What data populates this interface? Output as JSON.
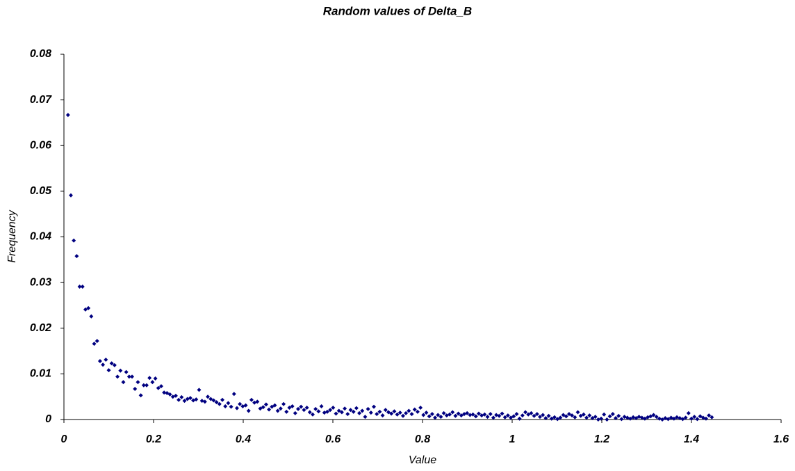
{
  "chart_data": {
    "type": "scatter",
    "title": "Random values of Delta_B",
    "x_label": "Value",
    "y_label": "Frequency",
    "color": "#000080",
    "marker": "diamond",
    "grid": false,
    "xlim": [
      0,
      1.6
    ],
    "xticks": [
      0,
      0.2,
      0.4,
      0.6,
      0.8,
      1,
      1.2,
      1.4,
      1.6
    ],
    "ylim": [
      0,
      0.08
    ],
    "yticks": [
      0,
      0.01,
      0.02,
      0.03,
      0.04,
      0.05,
      0.06,
      0.07,
      0.08
    ],
    "x": [
      0.009,
      0.0155,
      0.022,
      0.0285,
      0.035,
      0.0415,
      0.048,
      0.0545,
      0.061,
      0.0675,
      0.074,
      0.0805,
      0.087,
      0.0935,
      0.1,
      0.1065,
      0.113,
      0.1195,
      0.126,
      0.1325,
      0.139,
      0.1455,
      0.152,
      0.1585,
      0.165,
      0.1715,
      0.178,
      0.1845,
      0.191,
      0.1975,
      0.204,
      0.2105,
      0.217,
      0.2235,
      0.23,
      0.2365,
      0.243,
      0.2495,
      0.256,
      0.2625,
      0.269,
      0.2755,
      0.282,
      0.2885,
      0.295,
      0.3015,
      0.308,
      0.3145,
      0.321,
      0.3275,
      0.334,
      0.3405,
      0.347,
      0.3535,
      0.36,
      0.3665,
      0.373,
      0.3795,
      0.386,
      0.3925,
      0.399,
      0.4055,
      0.412,
      0.4185,
      0.425,
      0.4315,
      0.438,
      0.4445,
      0.451,
      0.4575,
      0.464,
      0.4705,
      0.477,
      0.4835,
      0.49,
      0.4965,
      0.503,
      0.5095,
      0.516,
      0.5225,
      0.529,
      0.5355,
      0.542,
      0.5485,
      0.555,
      0.5615,
      0.568,
      0.5745,
      0.581,
      0.5875,
      0.594,
      0.6005,
      0.607,
      0.6135,
      0.62,
      0.6265,
      0.633,
      0.6395,
      0.646,
      0.6525,
      0.659,
      0.6655,
      0.672,
      0.6785,
      0.685,
      0.6915,
      0.698,
      0.7045,
      0.711,
      0.7175,
      0.724,
      0.7305,
      0.737,
      0.7435,
      0.75,
      0.7565,
      0.763,
      0.7695,
      0.776,
      0.7825,
      0.789,
      0.7955,
      0.802,
      0.8085,
      0.815,
      0.8215,
      0.828,
      0.8345,
      0.841,
      0.8475,
      0.854,
      0.8605,
      0.867,
      0.8735,
      0.88,
      0.8865,
      0.893,
      0.8995,
      0.906,
      0.9125,
      0.919,
      0.9255,
      0.932,
      0.9385,
      0.945,
      0.9515,
      0.958,
      0.9645,
      0.971,
      0.9775,
      0.984,
      0.9905,
      0.997,
      1.0035,
      1.01,
      1.0165,
      1.023,
      1.0295,
      1.036,
      1.0425,
      1.049,
      1.0555,
      1.062,
      1.0685,
      1.075,
      1.0815,
      1.088,
      1.0945,
      1.101,
      1.1075,
      1.114,
      1.1205,
      1.127,
      1.1335,
      1.14,
      1.1465,
      1.153,
      1.1595,
      1.166,
      1.1725,
      1.179,
      1.1855,
      1.192,
      1.1985,
      1.205,
      1.2115,
      1.218,
      1.2245,
      1.231,
      1.2375,
      1.244,
      1.2505,
      1.257,
      1.2635,
      1.27,
      1.2765,
      1.283,
      1.2895,
      1.296,
      1.3025,
      1.309,
      1.3155,
      1.322,
      1.3285,
      1.335,
      1.3415,
      1.348,
      1.3545,
      1.361,
      1.3675,
      1.374,
      1.3805,
      1.387,
      1.3935,
      1.4,
      1.4065,
      1.413,
      1.4195,
      1.426,
      1.4325,
      1.439,
      1.4455
    ],
    "values": [
      0.0667,
      0.0491,
      0.0392,
      0.0358,
      0.0291,
      0.0291,
      0.0241,
      0.0244,
      0.0226,
      0.0166,
      0.0172,
      0.0128,
      0.012,
      0.0131,
      0.0108,
      0.0123,
      0.0119,
      0.0094,
      0.0107,
      0.0082,
      0.0104,
      0.0094,
      0.0094,
      0.0067,
      0.0082,
      0.0053,
      0.0075,
      0.0075,
      0.0091,
      0.0082,
      0.009,
      0.0069,
      0.0073,
      0.0059,
      0.0058,
      0.0055,
      0.005,
      0.0052,
      0.0043,
      0.0049,
      0.0041,
      0.0045,
      0.0047,
      0.0042,
      0.0044,
      0.0065,
      0.0041,
      0.0039,
      0.005,
      0.0045,
      0.0042,
      0.0038,
      0.0034,
      0.0043,
      0.0029,
      0.0036,
      0.0028,
      0.0056,
      0.0025,
      0.0034,
      0.0029,
      0.0031,
      0.0019,
      0.0043,
      0.0037,
      0.0039,
      0.0024,
      0.0027,
      0.0033,
      0.0022,
      0.0028,
      0.0031,
      0.0019,
      0.0024,
      0.0034,
      0.0017,
      0.0026,
      0.0029,
      0.0014,
      0.0023,
      0.0028,
      0.0021,
      0.0026,
      0.0016,
      0.0011,
      0.0023,
      0.0018,
      0.0029,
      0.0015,
      0.0017,
      0.0021,
      0.0026,
      0.0013,
      0.0019,
      0.0016,
      0.0024,
      0.0012,
      0.0021,
      0.0017,
      0.0025,
      0.0014,
      0.0019,
      0.0006,
      0.0023,
      0.0015,
      0.0028,
      0.0012,
      0.0017,
      0.0009,
      0.0021,
      0.0016,
      0.0013,
      0.0018,
      0.0011,
      0.0015,
      0.0008,
      0.0014,
      0.0019,
      0.0012,
      0.0022,
      0.0017,
      0.0026,
      0.001,
      0.0015,
      0.0007,
      0.0012,
      0.0004,
      0.001,
      0.0006,
      0.0014,
      0.0009,
      0.0011,
      0.0016,
      0.0008,
      0.0013,
      0.0009,
      0.0012,
      0.0014,
      0.001,
      0.0011,
      0.0007,
      0.0013,
      0.0009,
      0.0011,
      0.0006,
      0.0012,
      0.0004,
      0.001,
      0.0008,
      0.0013,
      0.0005,
      0.0009,
      0.0004,
      0.0007,
      0.0012,
      0.0002,
      0.0009,
      0.0016,
      0.0011,
      0.0014,
      0.0008,
      0.0012,
      0.0006,
      0.001,
      0.0003,
      0.0008,
      0.0002,
      0.0005,
      0.0001,
      0.0004,
      0.001,
      0.0007,
      0.0012,
      0.0009,
      0.0005,
      0.0016,
      0.0008,
      0.0011,
      0.0004,
      0.0009,
      0.0003,
      0.0006,
      0,
      0.0002,
      0.0011,
      0,
      0.0007,
      0.0012,
      0.0003,
      0.0008,
      0.0001,
      0.0006,
      0.0004,
      0.0002,
      0.0005,
      0.0003,
      0.0006,
      0.0004,
      0.0002,
      0.0005,
      0.0007,
      0.001,
      0.0006,
      0.0002,
      0,
      0.0003,
      0.0001,
      0.0004,
      0.0002,
      0.0005,
      0.0003,
      0.0001,
      0.0004,
      0.0014,
      0.0002,
      0.0006,
      0.0001,
      0.0007,
      0.0004,
      0.0002,
      0.0009,
      0.0005
    ]
  }
}
